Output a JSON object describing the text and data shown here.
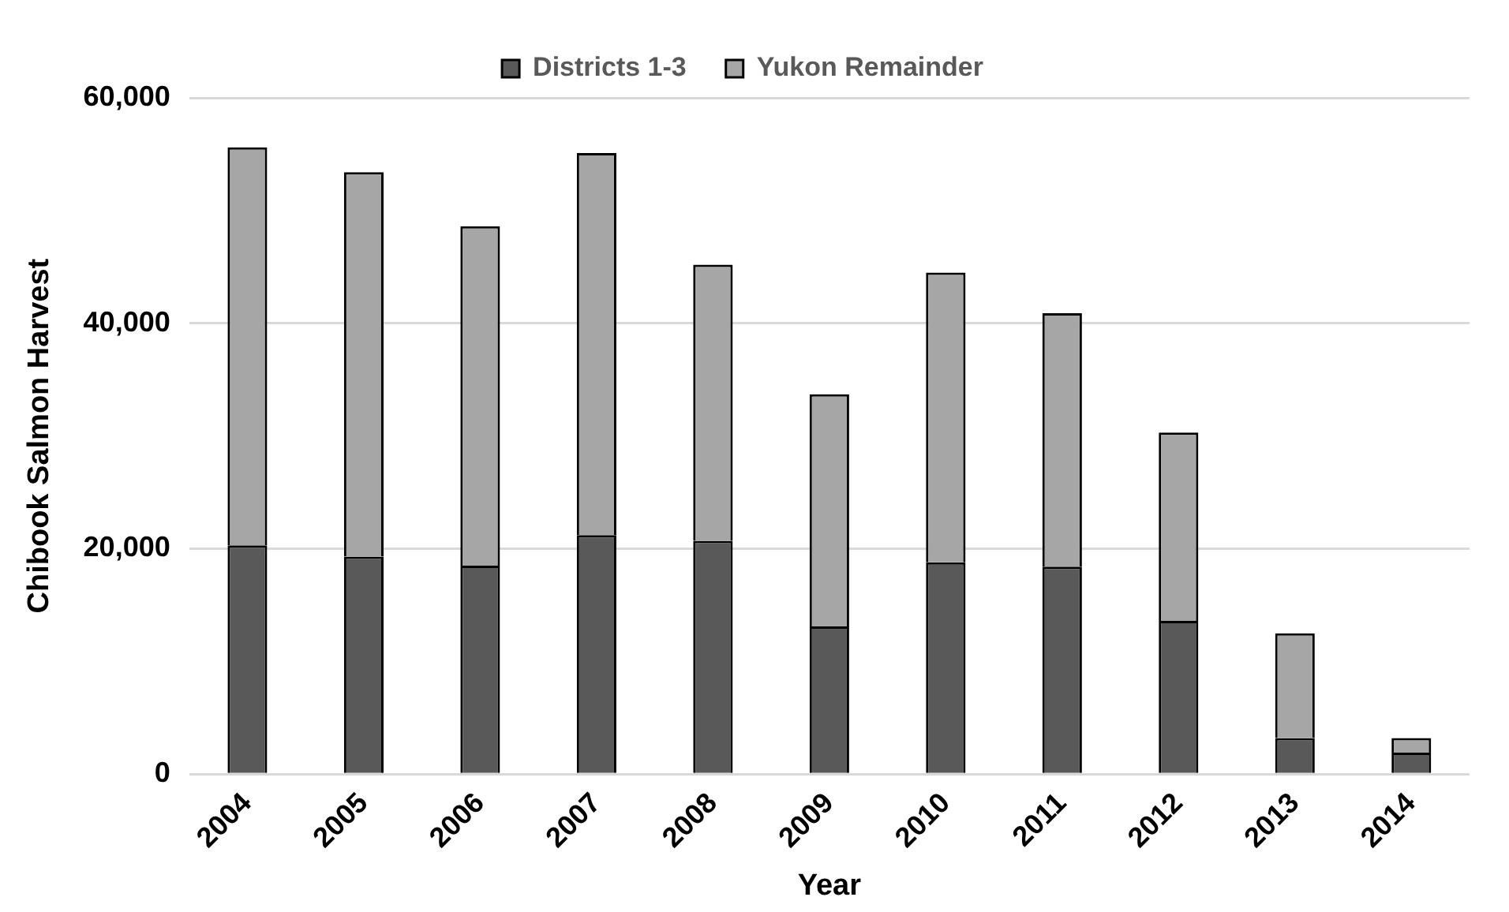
{
  "chart_data": {
    "type": "bar",
    "xlabel": "Year",
    "ylabel": "Chibook Salmon Harvest",
    "categories": [
      "2004",
      "2005",
      "2006",
      "2007",
      "2008",
      "2009",
      "2010",
      "2011",
      "2012",
      "2013",
      "2014"
    ],
    "series": [
      {
        "name": "Districts 1-3",
        "color": "#595959",
        "values": [
          20300,
          19300,
          18500,
          21200,
          20700,
          13100,
          18800,
          18400,
          13600,
          3200,
          1900
        ]
      },
      {
        "name": "Yukon Remainder",
        "color": "#a6a6a6",
        "values": [
          35300,
          34100,
          30100,
          33900,
          24500,
          20600,
          25700,
          22500,
          16700,
          9300,
          1300
        ]
      }
    ],
    "stacked": true,
    "ylim": [
      0,
      60000
    ],
    "yticks": [
      {
        "value": 0,
        "label": "0"
      },
      {
        "value": 20000,
        "label": "20,000"
      },
      {
        "value": 40000,
        "label": "40,000"
      },
      {
        "value": 60000,
        "label": "60,000"
      }
    ],
    "grid": "y",
    "legend": "top"
  }
}
